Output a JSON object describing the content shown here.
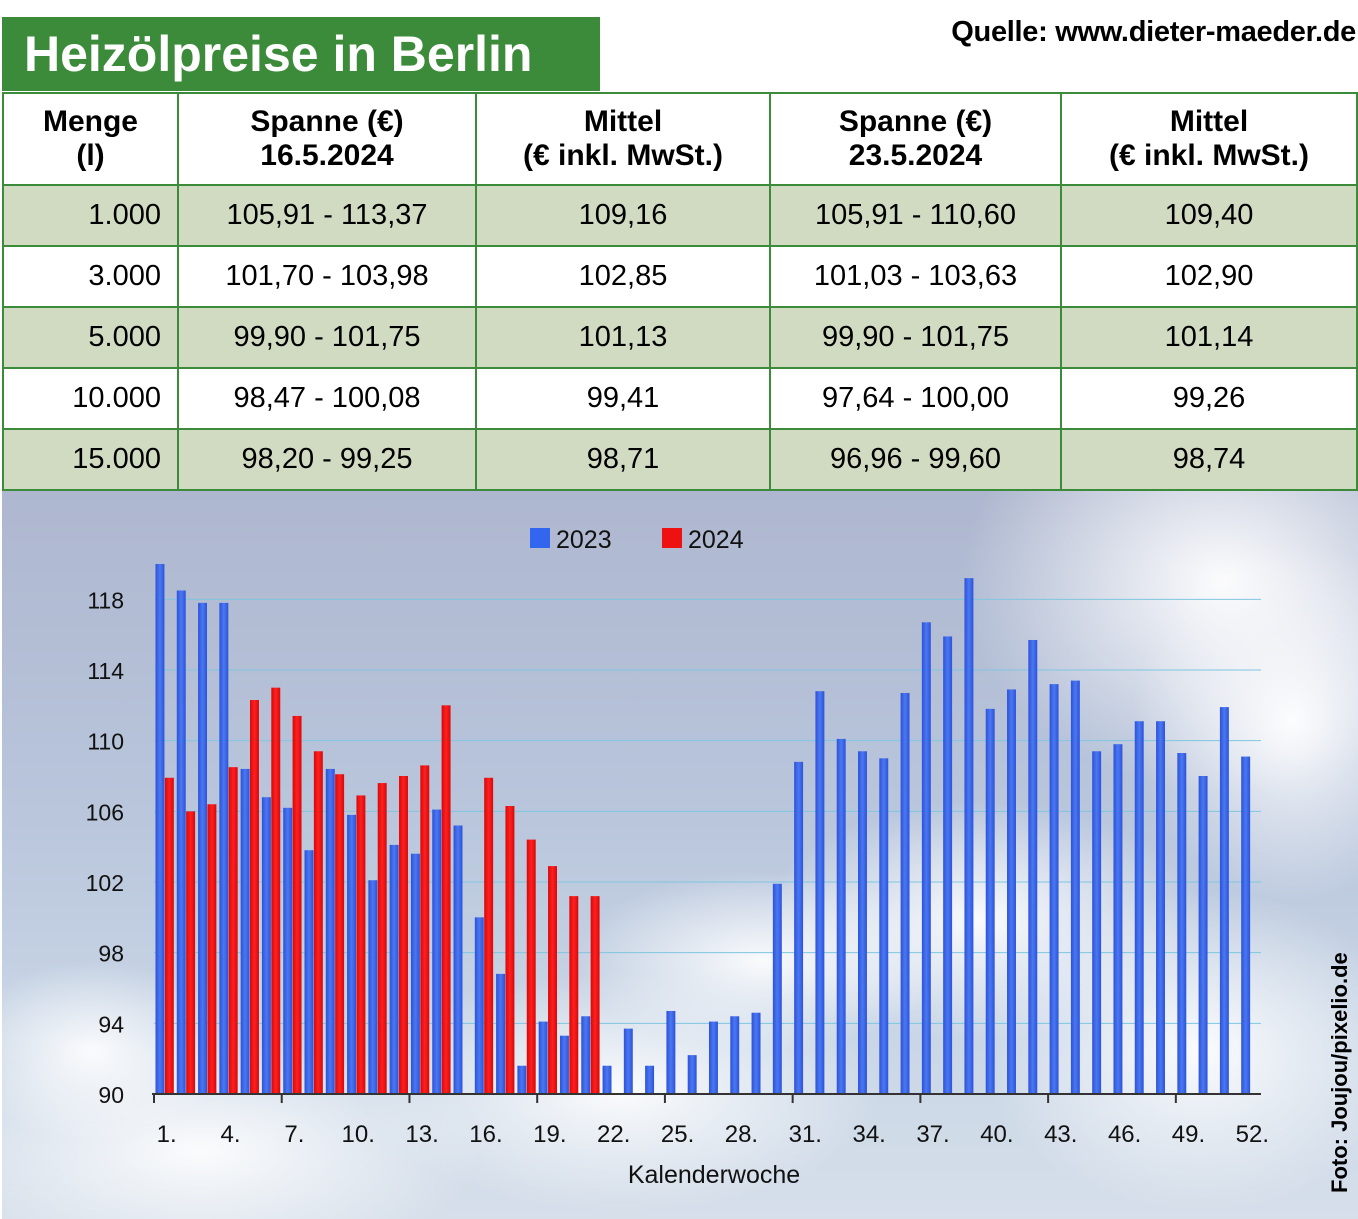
{
  "header": {
    "title": "Heizölpreise in Berlin",
    "source": "Quelle: www.dieter-maeder.de"
  },
  "table": {
    "headers": [
      [
        "Menge",
        "(l)"
      ],
      [
        "Spanne (€)",
        "16.5.2024"
      ],
      [
        "Mittel",
        "(€ inkl. MwSt.)"
      ],
      [
        "Spanne (€)",
        "23.5.2024"
      ],
      [
        "Mittel",
        "(€ inkl. MwSt.)"
      ]
    ],
    "rows": [
      [
        "1.000",
        "105,91 - 113,37",
        "109,16",
        "105,91 - 110,60",
        "109,40"
      ],
      [
        "3.000",
        "101,70 - 103,98",
        "102,85",
        "101,03 - 103,63",
        "102,90"
      ],
      [
        "5.000",
        "99,90 - 101,75",
        "101,13",
        "99,90 - 101,75",
        "101,14"
      ],
      [
        "10.000",
        "98,47 - 100,08",
        "99,41",
        "97,64 - 100,00",
        "99,26"
      ],
      [
        "15.000",
        "98,20 - 99,25",
        "98,71",
        "96,96 - 99,60",
        "98,74"
      ]
    ]
  },
  "photo_credit": "Foto: Joujou/pixelio.de",
  "colors": {
    "title_green": "#3c8b3a",
    "row_alt": "#d0dbc2",
    "series_2023": "#3366ee",
    "series_2024": "#ee1111"
  },
  "chart_data": {
    "type": "bar",
    "xlabel": "Kalenderwoche",
    "ylabel": "",
    "ylim": [
      90,
      120
    ],
    "yticks": [
      90,
      94,
      98,
      102,
      106,
      110,
      114,
      118
    ],
    "grid": true,
    "legend": "top-center",
    "x_tick_labels": [
      "1.",
      "4.",
      "7.",
      "10.",
      "13.",
      "16.",
      "19.",
      "22.",
      "25.",
      "28.",
      "31.",
      "34.",
      "37.",
      "40.",
      "43.",
      "46.",
      "49.",
      "52."
    ],
    "x_tick_weeks": [
      1,
      4,
      7,
      10,
      13,
      16,
      19,
      22,
      25,
      28,
      31,
      34,
      37,
      40,
      43,
      46,
      49,
      52
    ],
    "weeks": [
      1,
      2,
      3,
      4,
      5,
      6,
      7,
      8,
      9,
      10,
      11,
      12,
      13,
      14,
      15,
      16,
      17,
      18,
      19,
      20,
      21,
      22,
      23,
      24,
      25,
      26,
      27,
      28,
      29,
      30,
      31,
      32,
      33,
      34,
      35,
      36,
      37,
      38,
      39,
      40,
      41,
      42,
      43,
      44,
      45,
      46,
      47,
      48,
      49,
      50,
      51,
      52
    ],
    "series": [
      {
        "name": "2023",
        "values": [
          120.0,
          118.5,
          117.8,
          117.8,
          108.4,
          106.8,
          106.2,
          103.8,
          108.4,
          105.8,
          102.1,
          104.1,
          103.6,
          106.1,
          105.2,
          100.0,
          96.8,
          91.6,
          94.1,
          93.3,
          94.4,
          91.6,
          93.7,
          91.6,
          94.7,
          92.2,
          94.1,
          94.4,
          94.6,
          101.9,
          108.8,
          112.8,
          110.1,
          109.4,
          109.0,
          112.7,
          116.7,
          115.9,
          119.2,
          111.8,
          112.9,
          115.7,
          113.2,
          113.4,
          109.4,
          109.8,
          111.1,
          111.1,
          109.3,
          108.0,
          111.9,
          109.1
        ]
      },
      {
        "name": "2024",
        "values": [
          107.9,
          106.0,
          106.4,
          108.5,
          112.3,
          113.0,
          111.4,
          109.4,
          108.1,
          106.9,
          107.6,
          108.0,
          108.6,
          112.0,
          null,
          107.9,
          106.3,
          104.4,
          102.9,
          101.2,
          101.2,
          null,
          null,
          null,
          null,
          null,
          null,
          null,
          null,
          null,
          null,
          null,
          null,
          null,
          null,
          null,
          null,
          null,
          null,
          null,
          null,
          null,
          null,
          null,
          null,
          null,
          null,
          null,
          null,
          null,
          null,
          null
        ]
      }
    ]
  }
}
